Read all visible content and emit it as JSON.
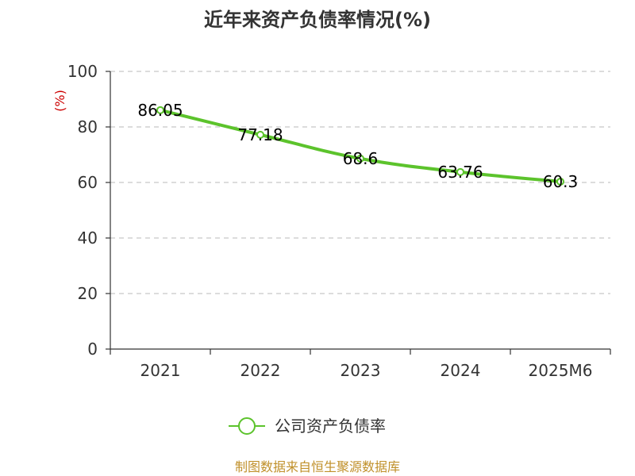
{
  "chart_data": {
    "type": "line",
    "title": "近年来资产负债率情况(%)",
    "ylabel": "(%)",
    "xlabel": "",
    "categories": [
      "2021",
      "2022",
      "2023",
      "2024",
      "2025M6"
    ],
    "series": [
      {
        "name": "公司资产负债率",
        "values": [
          86.05,
          77.18,
          68.6,
          63.76,
          60.3
        ],
        "labels": [
          "86.05",
          "77.18",
          "68.6",
          "63.76",
          "60.3"
        ]
      }
    ],
    "ylim": [
      0,
      100
    ],
    "yticks": [
      0,
      20,
      40,
      60,
      80,
      100
    ],
    "grid": true,
    "legend": "bottom",
    "line_color": "#5cc32c"
  },
  "source_text": "制图数据来自恒生聚源数据库"
}
